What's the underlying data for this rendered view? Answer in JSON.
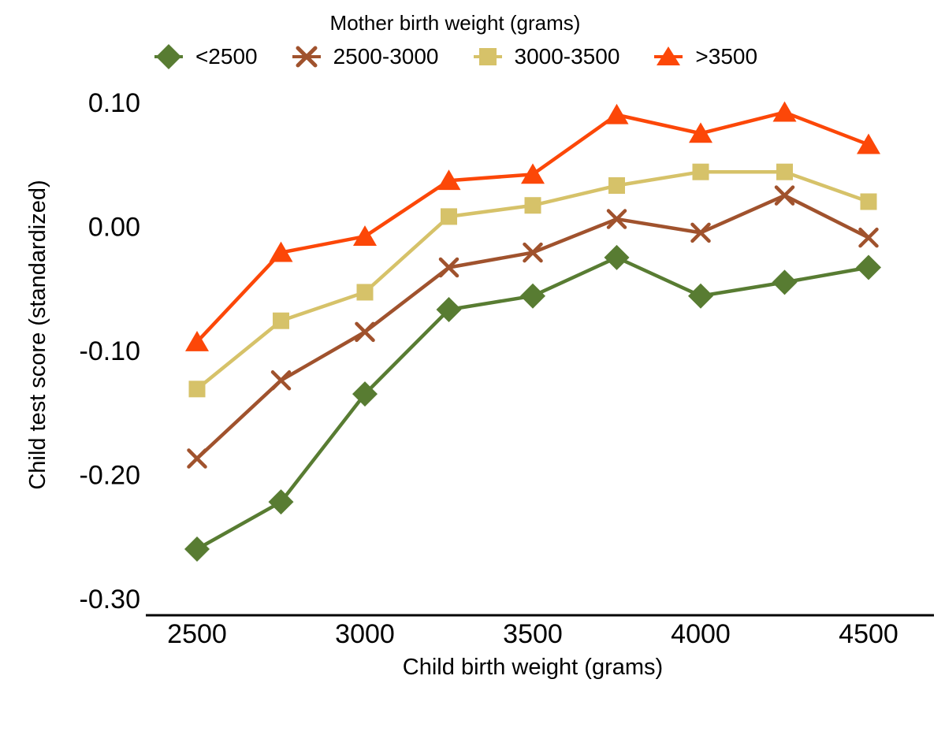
{
  "chart_data": {
    "type": "line",
    "title": "",
    "xlabel": "Child birth weight (grams)",
    "ylabel": "Child test score (standardized)",
    "legend": {
      "title": "Mother birth weight (grams)",
      "position": "top"
    },
    "grid": false,
    "xlim": [
      2347,
      4695
    ],
    "ylim": [
      -0.313,
      0.11
    ],
    "x": [
      2500,
      2750,
      3000,
      3250,
      3500,
      3750,
      4000,
      4250,
      4500
    ],
    "x_ticks": [
      {
        "label": "2500",
        "value": 2500
      },
      {
        "label": "3000",
        "value": 3000
      },
      {
        "label": "3500",
        "value": 3500
      },
      {
        "label": "4000",
        "value": 4000
      },
      {
        "label": "4500",
        "value": 4500
      }
    ],
    "y_ticks": [
      {
        "label": "0.10",
        "value": 0.1
      },
      {
        "label": "0.00",
        "value": 0.0
      },
      {
        "label": "-0.10",
        "value": -0.1
      },
      {
        "label": "-0.20",
        "value": -0.2
      },
      {
        "label": "-0.30",
        "value": -0.3
      }
    ],
    "series": [
      {
        "name": "<2500",
        "marker": "diamond",
        "color": "#587c32",
        "values": [
          -0.26,
          -0.222,
          -0.135,
          -0.067,
          -0.056,
          -0.025,
          -0.056,
          -0.045,
          -0.033
        ]
      },
      {
        "name": "2500-3000",
        "marker": "x",
        "color": "#a0522d",
        "values": [
          -0.187,
          -0.124,
          -0.085,
          -0.033,
          -0.021,
          0.006,
          -0.005,
          0.025,
          -0.009
        ]
      },
      {
        "name": "3000-3500",
        "marker": "square",
        "color": "#d6c269",
        "values": [
          -0.131,
          -0.076,
          -0.053,
          0.008,
          0.017,
          0.033,
          0.044,
          0.044,
          0.02
        ]
      },
      {
        "name": ">3500",
        "marker": "triangle",
        "color": "#fc4708",
        "values": [
          -0.093,
          -0.021,
          -0.008,
          0.037,
          0.042,
          0.09,
          0.075,
          0.092,
          0.066
        ]
      }
    ]
  }
}
